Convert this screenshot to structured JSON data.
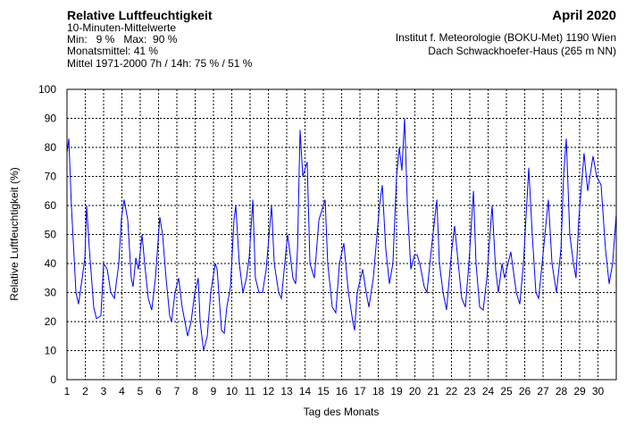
{
  "chart_data": {
    "type": "line",
    "title": "Relative Luftfeuchtigkeit",
    "subtitle_lines": [
      "10-Minuten-Mittelwerte",
      "Min:   9 %   Max:  90 %",
      "Monatsmittel:  41 %",
      "Mittel 1971-2000 7h / 14h:  75 % / 51 %"
    ],
    "period": "April 2020",
    "source_lines": [
      "Institut f. Meteorologie (BOKU-Met) 1190 Wien",
      "Dach Schwackhoefer-Haus (265 m NN)"
    ],
    "xlabel": "Tag des Monats",
    "ylabel": "Relative Luftfeuchtigkeit (%)",
    "xlim": [
      1,
      31
    ],
    "xticks": [
      1,
      2,
      3,
      4,
      5,
      6,
      7,
      8,
      9,
      10,
      11,
      12,
      13,
      14,
      15,
      16,
      17,
      18,
      19,
      20,
      21,
      22,
      23,
      24,
      25,
      26,
      27,
      28,
      29,
      30
    ],
    "ylim": [
      0,
      100
    ],
    "yticks": [
      0,
      10,
      20,
      30,
      40,
      50,
      60,
      70,
      80,
      90,
      100
    ],
    "grid": true,
    "series": [
      {
        "color": "#0000ff",
        "x": [
          1.0,
          1.1,
          1.24,
          1.49,
          1.63,
          1.83,
          1.98,
          2.07,
          2.22,
          2.46,
          2.61,
          2.85,
          3.0,
          3.2,
          3.39,
          3.59,
          3.83,
          3.98,
          4.12,
          4.32,
          4.51,
          4.61,
          4.76,
          4.9,
          5.1,
          5.24,
          5.44,
          5.63,
          5.83,
          6.07,
          6.22,
          6.41,
          6.61,
          6.71,
          6.9,
          7.1,
          7.29,
          7.44,
          7.59,
          7.78,
          7.98,
          8.17,
          8.27,
          8.46,
          8.66,
          8.85,
          9.1,
          9.2,
          9.44,
          9.59,
          9.73,
          9.93,
          10.12,
          10.22,
          10.41,
          10.61,
          10.8,
          10.95,
          11.15,
          11.29,
          11.49,
          11.68,
          11.88,
          12.17,
          12.32,
          12.56,
          12.71,
          13.05,
          13.15,
          13.34,
          13.49,
          13.59,
          13.73,
          13.88,
          14.12,
          14.27,
          14.51,
          14.76,
          15.1,
          15.24,
          15.49,
          15.68,
          15.88,
          16.12,
          16.37,
          16.61,
          16.71,
          16.85,
          17.15,
          17.34,
          17.49,
          17.73,
          18.07,
          18.22,
          18.41,
          18.61,
          18.8,
          19.0,
          19.15,
          19.29,
          19.44,
          19.59,
          19.78,
          19.98,
          20.12,
          20.27,
          20.51,
          20.66,
          20.9,
          21.2,
          21.34,
          21.54,
          21.73,
          21.88,
          22.02,
          22.17,
          22.37,
          22.56,
          22.76,
          22.95,
          23.2,
          23.34,
          23.54,
          23.73,
          23.93,
          24.22,
          24.41,
          24.56,
          24.76,
          24.9,
          25.24,
          25.54,
          25.73,
          25.93,
          26.22,
          26.41,
          26.61,
          26.76,
          26.95,
          27.29,
          27.49,
          27.73,
          27.98,
          28.12,
          28.27,
          28.46,
          28.66,
          28.8,
          28.95,
          29.24,
          29.44,
          29.73,
          29.93,
          30.17,
          30.41,
          30.61,
          30.8,
          31.0
        ],
        "values": [
          78,
          83,
          60,
          30,
          26,
          35,
          42,
          60,
          45,
          25,
          21,
          22,
          40,
          38,
          30,
          28,
          40,
          56,
          62,
          55,
          35,
          32,
          42,
          38,
          50,
          40,
          28,
          24,
          35,
          56,
          50,
          35,
          22,
          20,
          30,
          35,
          25,
          20,
          15,
          20,
          30,
          35,
          20,
          10,
          15,
          30,
          40,
          38,
          17,
          16,
          25,
          32,
          55,
          60,
          40,
          30,
          35,
          42,
          62,
          35,
          30,
          30,
          38,
          60,
          40,
          30,
          28,
          50,
          45,
          35,
          33,
          45,
          86,
          70,
          75,
          40,
          35,
          55,
          62,
          40,
          25,
          23,
          40,
          47,
          30,
          20,
          17,
          30,
          38,
          30,
          25,
          35,
          60,
          67,
          45,
          33,
          40,
          70,
          80,
          72,
          90,
          60,
          38,
          43,
          43,
          40,
          32,
          30,
          45,
          62,
          40,
          30,
          24,
          35,
          45,
          53,
          40,
          28,
          25,
          40,
          65,
          40,
          25,
          24,
          35,
          60,
          38,
          30,
          40,
          35,
          44,
          30,
          26,
          40,
          73,
          50,
          30,
          28,
          40,
          62,
          40,
          30,
          45,
          70,
          83,
          50,
          40,
          35,
          55,
          78,
          65,
          77,
          70,
          67,
          45,
          33,
          40,
          57
        ]
      }
    ]
  }
}
